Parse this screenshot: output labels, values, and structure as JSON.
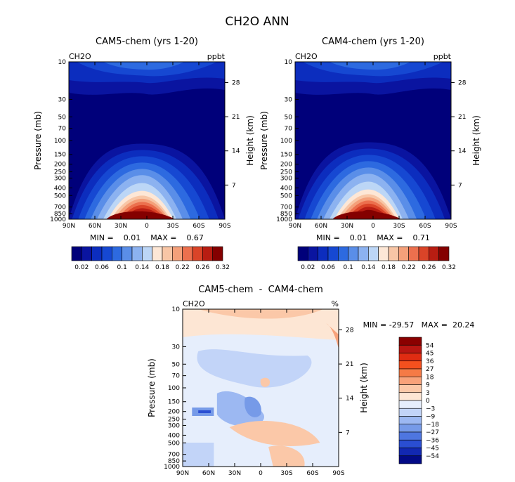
{
  "figure_title": "CH2O ANN",
  "chart_data": [
    {
      "type": "heatmap",
      "title": "CAM5-chem (yrs 1-20)",
      "variable": "CH2O",
      "units": "ppbt",
      "xlabel": "",
      "ylabel": "Pressure (mb)",
      "y2label": "Height (km)",
      "x_ticks": [
        "90N",
        "60N",
        "30N",
        "0",
        "30S",
        "60S",
        "90S"
      ],
      "y_ticks": [
        "10",
        "30",
        "50",
        "70",
        "100",
        "150",
        "200",
        "250",
        "300",
        "400",
        "500",
        "700",
        "850",
        "1000"
      ],
      "y2_ticks": [
        "28",
        "21",
        "14",
        "7"
      ],
      "stats": "MIN =    0.01    MAX =    0.67",
      "min": 0.01,
      "max": 0.67,
      "colorbar_labels": [
        "0.02",
        "0.06",
        "0.1",
        "0.14",
        "0.18",
        "0.22",
        "0.26",
        "0.32"
      ],
      "colorbar_levels": [
        0.02,
        0.04,
        0.06,
        0.08,
        0.1,
        0.12,
        0.14,
        0.16,
        0.18,
        0.2,
        0.22,
        0.24,
        0.26,
        0.28,
        0.32
      ]
    },
    {
      "type": "heatmap",
      "title": "CAM4-chem (yrs 1-20)",
      "variable": "CH2O",
      "units": "ppbt",
      "xlabel": "",
      "ylabel": "Pressure (mb)",
      "y2label": "Height (km)",
      "x_ticks": [
        "90N",
        "60N",
        "30N",
        "0",
        "30S",
        "60S",
        "90S"
      ],
      "y_ticks": [
        "10",
        "30",
        "50",
        "70",
        "100",
        "150",
        "200",
        "250",
        "300",
        "400",
        "500",
        "700",
        "850",
        "1000"
      ],
      "y2_ticks": [
        "28",
        "21",
        "14",
        "7"
      ],
      "stats": "MIN =    0.01    MAX =    0.71",
      "min": 0.01,
      "max": 0.71,
      "colorbar_labels": [
        "0.02",
        "0.06",
        "0.1",
        "0.14",
        "0.18",
        "0.22",
        "0.26",
        "0.32"
      ],
      "colorbar_levels": [
        0.02,
        0.04,
        0.06,
        0.08,
        0.1,
        0.12,
        0.14,
        0.16,
        0.18,
        0.2,
        0.22,
        0.24,
        0.26,
        0.28,
        0.32
      ]
    },
    {
      "type": "heatmap",
      "title": "CAM5-chem  -  CAM4-chem",
      "variable": "CH2O",
      "units": "%",
      "xlabel": "",
      "ylabel": "Pressure (mb)",
      "y2label": "Height (km)",
      "x_ticks": [
        "90N",
        "60N",
        "30N",
        "0",
        "30S",
        "60S",
        "90S"
      ],
      "y_ticks": [
        "10",
        "30",
        "50",
        "70",
        "100",
        "150",
        "200",
        "250",
        "300",
        "400",
        "500",
        "700",
        "850",
        "1000"
      ],
      "y2_ticks": [
        "28",
        "21",
        "14",
        "7"
      ],
      "stats": "MIN = -29.57   MAX =  20.24",
      "min": -29.57,
      "max": 20.24,
      "colorbar_labels": [
        "54",
        "45",
        "36",
        "27",
        "18",
        "9",
        "3",
        "0",
        "−3",
        "−9",
        "−18",
        "−27",
        "−36",
        "−45",
        "−54"
      ]
    }
  ],
  "colors": {
    "seq_palette": [
      "#00007a",
      "#0a14a0",
      "#0c2dbe",
      "#1648d2",
      "#2d6ae0",
      "#5a8ee8",
      "#8cb2f0",
      "#bcd6f6",
      "#fde7d6",
      "#f8c6a6",
      "#f4a07a",
      "#ec704e",
      "#da4428",
      "#b81d12",
      "#840000"
    ],
    "div_palette": [
      "#8a0000",
      "#b81612",
      "#e02c12",
      "#f4501e",
      "#f57a46",
      "#f8a27a",
      "#fbc8a8",
      "#fde6d4",
      "#e6eefc",
      "#c2d4f8",
      "#9cb8f2",
      "#769ae8",
      "#4e76e0",
      "#2a4ed2",
      "#1228b2",
      "#020a86"
    ]
  }
}
